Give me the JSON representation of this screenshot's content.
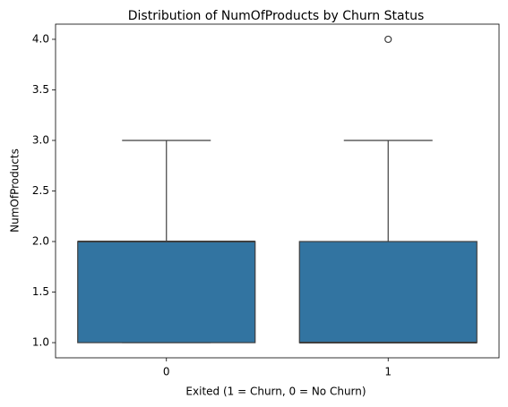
{
  "chart_data": {
    "type": "box",
    "title": "Distribution of NumOfProducts by Churn Status",
    "x_label": "Exited (1 = Churn, 0 = No Churn)",
    "y_label": "NumOfProducts",
    "categories": [
      "0",
      "1"
    ],
    "boxes": [
      {
        "whislo": 1,
        "q1": 1,
        "med": 2,
        "q3": 2,
        "whishi": 3,
        "fliers": []
      },
      {
        "whislo": 1,
        "q1": 1,
        "med": 1,
        "q3": 2,
        "whishi": 3,
        "fliers": [
          4
        ]
      }
    ],
    "color": "#3274a1",
    "edge_color": "#3f3f3f",
    "ylim": [
      0.85,
      4.15
    ],
    "yticks": [
      {
        "value": 1.0,
        "label": "1.0"
      },
      {
        "value": 1.5,
        "label": "1.5"
      },
      {
        "value": 2.0,
        "label": "2.0"
      },
      {
        "value": 2.5,
        "label": "2.5"
      },
      {
        "value": 3.0,
        "label": "3.0"
      },
      {
        "value": 3.5,
        "label": "3.5"
      },
      {
        "value": 4.0,
        "label": "4.0"
      }
    ]
  }
}
